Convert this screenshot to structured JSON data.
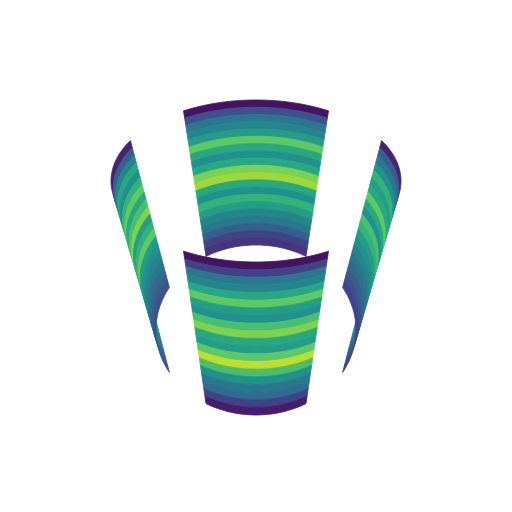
{
  "chart_data": {
    "type": "surface",
    "tick_labels": false,
    "color": "viridis",
    "color_range": [
      0,
      1
    ],
    "panels": [
      {
        "theta": [
          150,
          210
        ],
        "values": [
          0.05,
          0.25,
          0.4,
          0.45,
          0.55,
          0.75,
          0.6,
          0.5,
          0.6,
          0.8,
          0.85,
          0.6,
          0.5,
          0.65,
          0.55,
          0.45,
          0.4,
          0.3,
          0.2,
          0.15
        ]
      },
      {
        "theta": [
          240,
          300
        ],
        "values": [
          0.1,
          0.3,
          0.45,
          0.6,
          0.5,
          0.65,
          0.75,
          0.6,
          0.7,
          0.8,
          0.55,
          0.65,
          0.75,
          0.55,
          0.5,
          0.45,
          0.4,
          0.35,
          0.3,
          0.25
        ]
      },
      {
        "theta": [
          60,
          120
        ],
        "values": [
          0.1,
          0.3,
          0.4,
          0.5,
          0.65,
          0.55,
          0.6,
          0.75,
          0.6,
          0.5,
          0.7,
          0.65,
          0.55,
          0.5,
          0.45,
          0.4,
          0.35,
          0.3,
          0.25,
          0.2
        ]
      },
      {
        "theta": [
          -30,
          30
        ],
        "values": [
          0.05,
          0.2,
          0.4,
          0.45,
          0.6,
          0.75,
          0.55,
          0.5,
          0.7,
          0.8,
          0.6,
          0.55,
          0.75,
          0.9,
          0.7,
          0.5,
          0.4,
          0.35,
          0.2,
          0.08
        ]
      }
    ]
  }
}
